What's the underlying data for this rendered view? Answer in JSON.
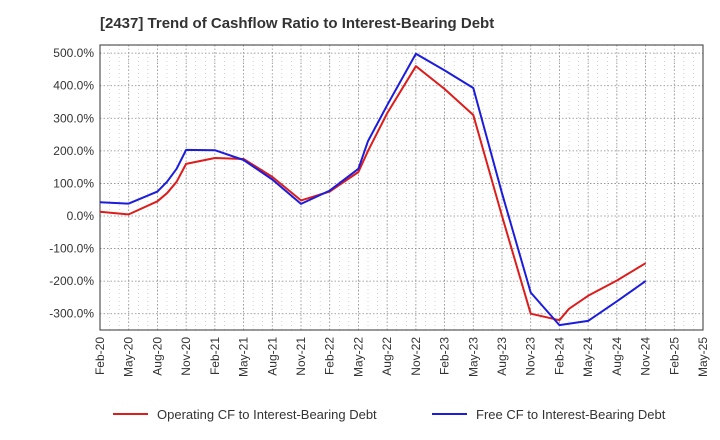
{
  "title": "[2437]  Trend of Cashflow Ratio to Interest-Bearing Debt",
  "chart_data": {
    "type": "line",
    "title": "[2437]  Trend of Cashflow Ratio to Interest-Bearing Debt",
    "xlabel": "",
    "ylabel": "",
    "grid": true,
    "legend_position": "bottom",
    "y_ticks": [
      "500.0%",
      "400.0%",
      "300.0%",
      "200.0%",
      "100.0%",
      "0.0%",
      "-100.0%",
      "-200.0%",
      "-300.0%"
    ],
    "y_tick_values": [
      500,
      400,
      300,
      200,
      100,
      0,
      -100,
      -200,
      -300
    ],
    "ylim": [
      -350,
      525
    ],
    "x_ticks": [
      "Feb-20",
      "May-20",
      "Aug-20",
      "Nov-20",
      "Feb-21",
      "May-21",
      "Aug-21",
      "Nov-21",
      "Feb-22",
      "May-22",
      "Aug-22",
      "Nov-22",
      "Feb-23",
      "May-23",
      "Aug-23",
      "Nov-23",
      "Feb-24",
      "May-24",
      "Aug-24",
      "Nov-24",
      "Feb-25",
      "May-25"
    ],
    "series": [
      {
        "name": "Operating CF to Interest-Bearing Debt",
        "color": "#dd1c1c",
        "x": [
          "Feb-20",
          "May-20",
          "Aug-20",
          "Sep-20",
          "Oct-20",
          "Nov-20",
          "Feb-21",
          "May-21",
          "Aug-21",
          "Nov-21",
          "Feb-22",
          "May-22",
          "Jun-22",
          "Aug-22",
          "Nov-22",
          "Feb-23",
          "May-23",
          "Aug-23",
          "Nov-23",
          "Feb-24",
          "Mar-24",
          "May-24",
          "Aug-24",
          "Nov-24"
        ],
        "values": [
          13,
          5,
          45,
          70,
          105,
          160,
          178,
          175,
          120,
          48,
          75,
          135,
          200,
          315,
          460,
          390,
          310,
          0,
          -300,
          -320,
          -285,
          -245,
          -198,
          -145
        ]
      },
      {
        "name": "Free CF to Interest-Bearing Debt",
        "color": "#1c1cdd",
        "x": [
          "Feb-20",
          "May-20",
          "Aug-20",
          "Sep-20",
          "Oct-20",
          "Nov-20",
          "Feb-21",
          "May-21",
          "Aug-21",
          "Nov-21",
          "Feb-22",
          "May-22",
          "Jun-22",
          "Aug-22",
          "Nov-22",
          "Feb-23",
          "May-23",
          "Aug-23",
          "Nov-23",
          "Feb-24",
          "May-24",
          "Aug-24",
          "Nov-24"
        ],
        "values": [
          42,
          38,
          75,
          105,
          145,
          203,
          202,
          172,
          112,
          37,
          78,
          145,
          230,
          340,
          498,
          447,
          393,
          70,
          -235,
          -335,
          -322,
          -262,
          -200
        ]
      }
    ]
  }
}
